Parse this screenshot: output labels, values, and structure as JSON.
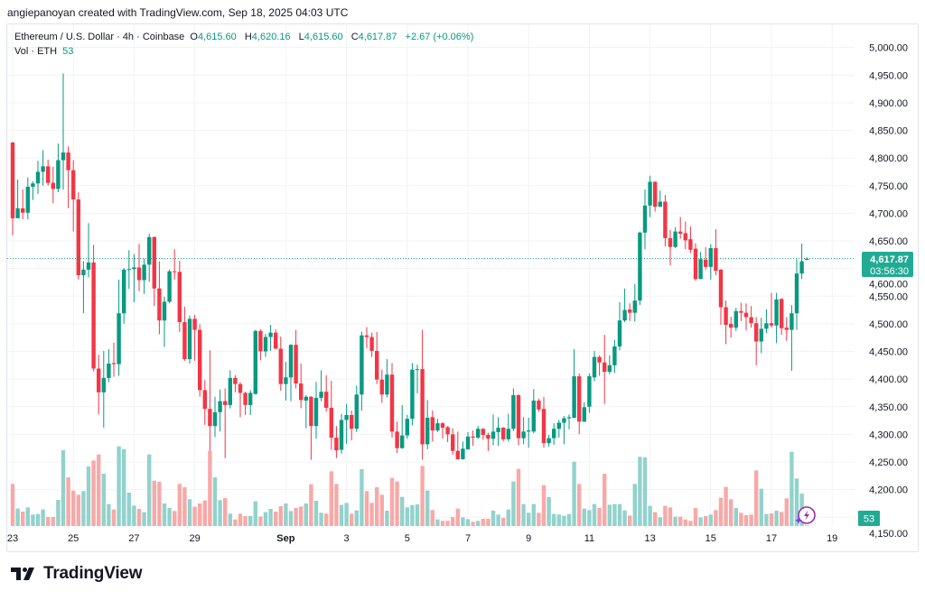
{
  "credit": "angiepanoyan created with TradingView.com, Sep 18, 2025 04:03 UTC",
  "legend": {
    "symbol": "Ethereum / U.S. Dollar · 4h · Coinbase",
    "o_label": "O",
    "o": "4,615.60",
    "h_label": "H",
    "h": "4,620.16",
    "l_label": "L",
    "l": "4,615.60",
    "c_label": "C",
    "c": "4,617.87",
    "change": "+2.67 (+0.06%)",
    "vol_label": "Vol · ETH",
    "vol": "53"
  },
  "current_price": {
    "price": "4,617.87",
    "countdown": "03:56:30",
    "value": 4617.87
  },
  "volume_badge": "53",
  "logo": "TradingView",
  "colors": {
    "up": "#089981",
    "down": "#f23645",
    "vol_up": "#92d2cc",
    "vol_down": "#f7a9a7",
    "badge": "#22ab94"
  },
  "chart_data": {
    "type": "candlestick",
    "interval": "4h",
    "start": "Aug 23 00:00",
    "ylim": [
      4150,
      5000
    ],
    "y_ticks": [
      {
        "value": 5000,
        "label": "5,000.00"
      },
      {
        "value": 4950,
        "label": "4,950.00"
      },
      {
        "value": 4900,
        "label": "4,900.00"
      },
      {
        "value": 4850,
        "label": "4,850.00"
      },
      {
        "value": 4800,
        "label": "4,800.00"
      },
      {
        "value": 4750,
        "label": "4,750.00"
      },
      {
        "value": 4700,
        "label": "4,700.00"
      },
      {
        "value": 4650,
        "label": "4,650.00"
      },
      {
        "value": 4600,
        "label": "4,600.00"
      },
      {
        "value": 4550,
        "label": "4,550.00"
      },
      {
        "value": 4500,
        "label": "4,500.00"
      },
      {
        "value": 4450,
        "label": "4,450.00"
      },
      {
        "value": 4400,
        "label": "4,400.00"
      },
      {
        "value": 4350,
        "label": "4,350.00"
      },
      {
        "value": 4300,
        "label": "4,300.00"
      },
      {
        "value": 4250,
        "label": "4,250.00"
      },
      {
        "value": 4200,
        "label": "4,200.00"
      },
      {
        "value": 4150,
        "label": "4,150.00"
      }
    ],
    "x_ticks": [
      {
        "day": 0,
        "label": "23"
      },
      {
        "day": 2,
        "label": "25"
      },
      {
        "day": 4,
        "label": "27"
      },
      {
        "day": 6,
        "label": "29"
      },
      {
        "day": 9,
        "label": "Sep"
      },
      {
        "day": 11,
        "label": "3"
      },
      {
        "day": 13,
        "label": "5"
      },
      {
        "day": 15,
        "label": "7"
      },
      {
        "day": 17,
        "label": "9"
      },
      {
        "day": 19,
        "label": "11"
      },
      {
        "day": 21,
        "label": "13"
      },
      {
        "day": 23,
        "label": "15"
      },
      {
        "day": 25,
        "label": "17"
      },
      {
        "day": 27,
        "label": "19"
      }
    ],
    "ohlc": [
      [
        4828,
        4829,
        4660,
        4691
      ],
      [
        4691,
        4761,
        4691,
        4709
      ],
      [
        4709,
        4743,
        4689,
        4701
      ],
      [
        4701,
        4765,
        4689,
        4748
      ],
      [
        4748,
        4758,
        4724,
        4754
      ],
      [
        4754,
        4795,
        4735,
        4775
      ],
      [
        4775,
        4814,
        4750,
        4785
      ],
      [
        4785,
        4797,
        4750,
        4755
      ],
      [
        4755,
        4784,
        4718,
        4744
      ],
      [
        4744,
        4826,
        4738,
        4796
      ],
      [
        4796,
        4953,
        4743,
        4810
      ],
      [
        4810,
        4821,
        4709,
        4778
      ],
      [
        4778,
        4796,
        4667,
        4725
      ],
      [
        4725,
        4738,
        4580,
        4588
      ],
      [
        4588,
        4613,
        4519,
        4598
      ],
      [
        4598,
        4682,
        4584,
        4611
      ],
      [
        4611,
        4643,
        4414,
        4419
      ],
      [
        4419,
        4444,
        4336,
        4376
      ],
      [
        4376,
        4451,
        4312,
        4402
      ],
      [
        4402,
        4454,
        4394,
        4428
      ],
      [
        4429,
        4466,
        4404,
        4427
      ],
      [
        4427,
        4580,
        4406,
        4519
      ],
      [
        4519,
        4601,
        4500,
        4598
      ],
      [
        4598,
        4633,
        4563,
        4599
      ],
      [
        4599,
        4626,
        4539,
        4602
      ],
      [
        4602,
        4645,
        4559,
        4579
      ],
      [
        4579,
        4618,
        4554,
        4607
      ],
      [
        4607,
        4663,
        4576,
        4657
      ],
      [
        4657,
        4658,
        4532,
        4564
      ],
      [
        4564,
        4613,
        4481,
        4506
      ],
      [
        4506,
        4549,
        4458,
        4540
      ],
      [
        4540,
        4598,
        4537,
        4595
      ],
      [
        4595,
        4635,
        4580,
        4594
      ],
      [
        4594,
        4614,
        4485,
        4503
      ],
      [
        4503,
        4531,
        4433,
        4436
      ],
      [
        4436,
        4515,
        4428,
        4509
      ],
      [
        4509,
        4516,
        4433,
        4489
      ],
      [
        4489,
        4499,
        4368,
        4380
      ],
      [
        4380,
        4398,
        4317,
        4346
      ],
      [
        4346,
        4452,
        4270,
        4315
      ],
      [
        4315,
        4368,
        4295,
        4340
      ],
      [
        4340,
        4381,
        4305,
        4360
      ],
      [
        4360,
        4383,
        4257,
        4353
      ],
      [
        4353,
        4416,
        4347,
        4402
      ],
      [
        4402,
        4407,
        4376,
        4391
      ],
      [
        4391,
        4394,
        4331,
        4375
      ],
      [
        4375,
        4377,
        4335,
        4353
      ],
      [
        4353,
        4380,
        4335,
        4375
      ],
      [
        4373,
        4489,
        4372,
        4487
      ],
      [
        4487,
        4490,
        4434,
        4450
      ],
      [
        4450,
        4482,
        4440,
        4476
      ],
      [
        4476,
        4498,
        4451,
        4484
      ],
      [
        4484,
        4490,
        4454,
        4455
      ],
      [
        4455,
        4477,
        4379,
        4391
      ],
      [
        4391,
        4431,
        4361,
        4403
      ],
      [
        4403,
        4463,
        4360,
        4462
      ],
      [
        4462,
        4489,
        4383,
        4392
      ],
      [
        4392,
        4428,
        4347,
        4362
      ],
      [
        4361,
        4371,
        4311,
        4368
      ],
      [
        4368,
        4369,
        4254,
        4315
      ],
      [
        4315,
        4395,
        4292,
        4366
      ],
      [
        4366,
        4416,
        4360,
        4377
      ],
      [
        4377,
        4407,
        4341,
        4348
      ],
      [
        4348,
        4397,
        4272,
        4294
      ],
      [
        4294,
        4315,
        4257,
        4271
      ],
      [
        4272,
        4337,
        4265,
        4326
      ],
      [
        4326,
        4355,
        4283,
        4335
      ],
      [
        4335,
        4343,
        4289,
        4310
      ],
      [
        4310,
        4388,
        4304,
        4372
      ],
      [
        4372,
        4486,
        4343,
        4479
      ],
      [
        4479,
        4494,
        4456,
        4476
      ],
      [
        4476,
        4484,
        4440,
        4451
      ],
      [
        4451,
        4485,
        4391,
        4399
      ],
      [
        4399,
        4417,
        4357,
        4372
      ],
      [
        4372,
        4436,
        4367,
        4408
      ],
      [
        4408,
        4429,
        4294,
        4305
      ],
      [
        4305,
        4323,
        4266,
        4275
      ],
      [
        4275,
        4353,
        4274,
        4298
      ],
      [
        4298,
        4335,
        4292,
        4328
      ],
      [
        4328,
        4429,
        4316,
        4417
      ],
      [
        4417,
        4426,
        4374,
        4418
      ],
      [
        4418,
        4489,
        4254,
        4282
      ],
      [
        4282,
        4362,
        4273,
        4330
      ],
      [
        4331,
        4343,
        4287,
        4307
      ],
      [
        4307,
        4328,
        4304,
        4320
      ],
      [
        4320,
        4322,
        4292,
        4312
      ],
      [
        4313,
        4315,
        4286,
        4300
      ],
      [
        4300,
        4311,
        4263,
        4270
      ],
      [
        4270,
        4305,
        4254,
        4255
      ],
      [
        4255,
        4287,
        4254,
        4274
      ],
      [
        4273,
        4304,
        4272,
        4296
      ],
      [
        4296,
        4307,
        4279,
        4294
      ],
      [
        4294,
        4315,
        4292,
        4310
      ],
      [
        4310,
        4311,
        4290,
        4299
      ],
      [
        4299,
        4303,
        4270,
        4292
      ],
      [
        4292,
        4336,
        4280,
        4305
      ],
      [
        4304,
        4331,
        4279,
        4312
      ],
      [
        4312,
        4313,
        4287,
        4291
      ],
      [
        4291,
        4337,
        4287,
        4310
      ],
      [
        4310,
        4383,
        4306,
        4371
      ],
      [
        4371,
        4372,
        4280,
        4293
      ],
      [
        4293,
        4331,
        4282,
        4305
      ],
      [
        4305,
        4330,
        4276,
        4307
      ],
      [
        4305,
        4382,
        4302,
        4361
      ],
      [
        4361,
        4365,
        4341,
        4345
      ],
      [
        4346,
        4368,
        4276,
        4284
      ],
      [
        4284,
        4299,
        4278,
        4293
      ],
      [
        4293,
        4320,
        4281,
        4310
      ],
      [
        4310,
        4326,
        4294,
        4321
      ],
      [
        4321,
        4333,
        4282,
        4329
      ],
      [
        4329,
        4336,
        4309,
        4331
      ],
      [
        4330,
        4454,
        4329,
        4405
      ],
      [
        4405,
        4410,
        4300,
        4323
      ],
      [
        4323,
        4358,
        4322,
        4349
      ],
      [
        4350,
        4410,
        4339,
        4405
      ],
      [
        4403,
        4451,
        4396,
        4440
      ],
      [
        4440,
        4443,
        4406,
        4430
      ],
      [
        4430,
        4480,
        4355,
        4413
      ],
      [
        4413,
        4443,
        4409,
        4425
      ],
      [
        4425,
        4471,
        4411,
        4459
      ],
      [
        4459,
        4539,
        4452,
        4506
      ],
      [
        4506,
        4564,
        4503,
        4525
      ],
      [
        4526,
        4537,
        4505,
        4520
      ],
      [
        4520,
        4572,
        4504,
        4542
      ],
      [
        4542,
        4667,
        4534,
        4665
      ],
      [
        4665,
        4743,
        4635,
        4714
      ],
      [
        4714,
        4768,
        4693,
        4757
      ],
      [
        4757,
        4758,
        4703,
        4712
      ],
      [
        4712,
        4741,
        4711,
        4721
      ],
      [
        4721,
        4733,
        4640,
        4655
      ],
      [
        4655,
        4670,
        4606,
        4639
      ],
      [
        4639,
        4675,
        4637,
        4667
      ],
      [
        4667,
        4693,
        4654,
        4663
      ],
      [
        4664,
        4685,
        4635,
        4651
      ],
      [
        4653,
        4676,
        4628,
        4634
      ],
      [
        4636,
        4646,
        4578,
        4581
      ],
      [
        4581,
        4630,
        4581,
        4617
      ],
      [
        4616,
        4639,
        4598,
        4603
      ],
      [
        4603,
        4644,
        4580,
        4637
      ],
      [
        4637,
        4671,
        4588,
        4596
      ],
      [
        4598,
        4599,
        4498,
        4530
      ],
      [
        4530,
        4542,
        4463,
        4498
      ],
      [
        4500,
        4513,
        4475,
        4493
      ],
      [
        4493,
        4529,
        4487,
        4523
      ],
      [
        4523,
        4538,
        4505,
        4520
      ],
      [
        4520,
        4537,
        4488,
        4512
      ],
      [
        4512,
        4532,
        4493,
        4501
      ],
      [
        4501,
        4512,
        4425,
        4468
      ],
      [
        4468,
        4511,
        4447,
        4491
      ],
      [
        4491,
        4526,
        4483,
        4501
      ],
      [
        4501,
        4556,
        4493,
        4497
      ],
      [
        4497,
        4556,
        4465,
        4544
      ],
      [
        4545,
        4546,
        4480,
        4492
      ],
      [
        4493,
        4512,
        4469,
        4489
      ],
      [
        4489,
        4534,
        4415,
        4519
      ],
      [
        4519,
        4617,
        4489,
        4591
      ],
      [
        4591,
        4645,
        4581,
        4613
      ],
      [
        4615.6,
        4620.16,
        4615.6,
        4617.87
      ]
    ],
    "volume_relative": [
      140,
      58,
      48,
      62,
      38,
      40,
      55,
      30,
      30,
      87,
      252,
      162,
      118,
      104,
      116,
      198,
      218,
      238,
      174,
      73,
      55,
      265,
      256,
      111,
      68,
      57,
      46,
      238,
      151,
      147,
      75,
      60,
      50,
      140,
      129,
      89,
      64,
      75,
      85,
      250,
      162,
      86,
      93,
      41,
      22,
      41,
      33,
      33,
      82,
      32,
      46,
      57,
      48,
      66,
      75,
      50,
      60,
      65,
      75,
      139,
      84,
      44,
      41,
      182,
      140,
      70,
      77,
      41,
      52,
      189,
      116,
      77,
      129,
      104,
      51,
      160,
      148,
      97,
      62,
      70,
      72,
      200,
      118,
      53,
      22,
      17,
      17,
      30,
      58,
      29,
      23,
      14,
      17,
      24,
      24,
      51,
      38,
      27,
      55,
      148,
      190,
      73,
      44,
      73,
      44,
      136,
      96,
      40,
      38,
      34,
      40,
      214,
      140,
      58,
      53,
      73,
      60,
      174,
      71,
      73,
      73,
      52,
      35,
      140,
      230,
      228,
      67,
      46,
      29,
      67,
      62,
      31,
      31,
      22,
      17,
      60,
      29,
      33,
      38,
      53,
      94,
      130,
      89,
      60,
      44,
      36,
      38,
      185,
      124,
      40,
      42,
      51,
      47,
      92,
      247,
      158,
      108,
      2
    ]
  }
}
